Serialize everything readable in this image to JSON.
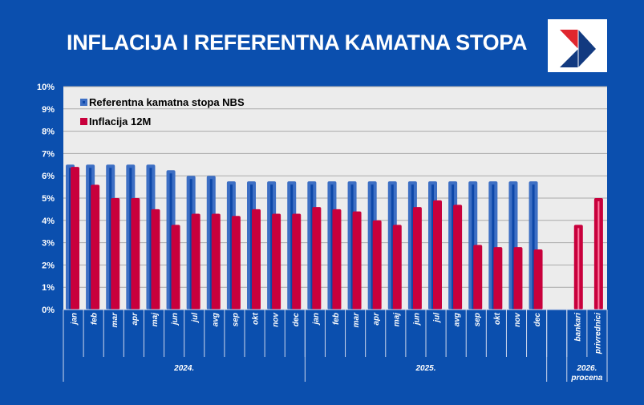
{
  "title": "INFLACIJA I REFERENTNA KAMATNA STOPA",
  "colors": {
    "background": "#0b4fae",
    "plot_bg": "#ececec",
    "rate": "#3d6fc4",
    "rate_inner": "#0d47a8",
    "inflation": "#c8003c",
    "forecast_inner": "#ff7aa0"
  },
  "chart_data": {
    "type": "bar",
    "ylim": [
      0,
      10
    ],
    "yticks": [
      "0%",
      "1%",
      "2%",
      "3%",
      "4%",
      "5%",
      "6%",
      "7%",
      "8%",
      "9%",
      "10%"
    ],
    "grid": true,
    "legend_position": "top-left",
    "categories": [
      "jan",
      "feb",
      "mar",
      "apr",
      "maj",
      "jun",
      "jul",
      "avg",
      "sep",
      "okt",
      "nov",
      "dec",
      "jan",
      "feb",
      "mar",
      "apr",
      "maj",
      "jun",
      "jul",
      "avg",
      "sep",
      "okt",
      "nov",
      "dec",
      "",
      "bankari",
      "privrednici"
    ],
    "groups": [
      {
        "label": "2024.",
        "span": 12
      },
      {
        "label": "2025.",
        "span": 12
      },
      {
        "label": "",
        "span": 1
      },
      {
        "label": "2026.",
        "sublabel": "procena",
        "span": 2
      }
    ],
    "series": [
      {
        "name": "Referentna kamatna stopa NBS",
        "values": [
          6.5,
          6.5,
          6.5,
          6.5,
          6.5,
          6.25,
          6.0,
          6.0,
          5.75,
          5.75,
          5.75,
          5.75,
          5.75,
          5.75,
          5.75,
          5.75,
          5.75,
          5.75,
          5.75,
          5.75,
          5.75,
          5.75,
          5.75,
          5.75,
          null,
          null,
          null
        ]
      },
      {
        "name": "Inflacija 12M",
        "values": [
          6.4,
          5.6,
          5.0,
          5.0,
          4.5,
          3.8,
          4.3,
          4.3,
          4.2,
          4.5,
          4.3,
          4.3,
          4.6,
          4.5,
          4.4,
          4.0,
          3.8,
          4.6,
          4.9,
          4.7,
          2.9,
          2.8,
          2.8,
          2.7,
          null,
          3.8,
          5.0
        ]
      }
    ]
  }
}
